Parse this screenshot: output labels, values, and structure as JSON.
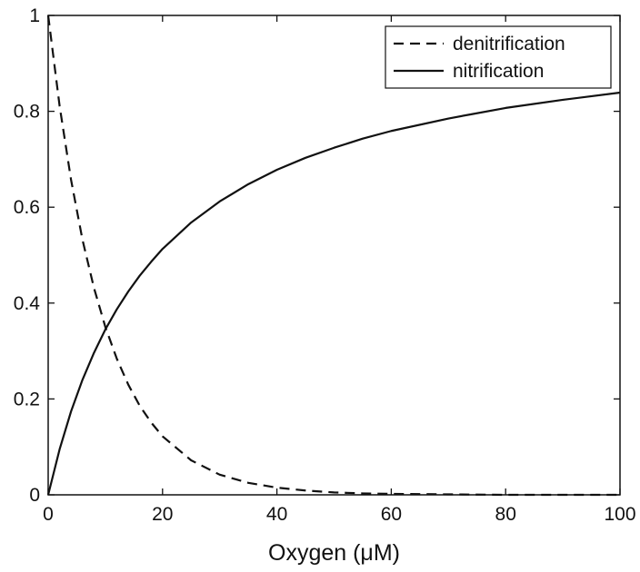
{
  "chart_data": {
    "type": "line",
    "title": "",
    "xlabel": "Oxygen (μM)",
    "ylabel": "",
    "xlim": [
      0,
      100
    ],
    "ylim": [
      0,
      1
    ],
    "xticks": [
      0,
      20,
      40,
      60,
      80,
      100
    ],
    "xtick_labels": [
      "0",
      "20",
      "40",
      "60",
      "80",
      "100"
    ],
    "yticks": [
      0,
      0.2,
      0.4,
      0.6,
      0.8,
      1
    ],
    "ytick_labels": [
      "0",
      "0.2",
      "0.4",
      "0.6",
      "0.8",
      "1"
    ],
    "grid": false,
    "legend_position": "top-right",
    "x": [
      0,
      2,
      4,
      6,
      8,
      10,
      12,
      14,
      16,
      18,
      20,
      25,
      30,
      35,
      40,
      45,
      50,
      55,
      60,
      70,
      80,
      90,
      100
    ],
    "series": [
      {
        "name": "denitrification",
        "line_style": "dashed",
        "color": "#111111",
        "values": [
          1.0,
          0.811,
          0.657,
          0.532,
          0.432,
          0.35,
          0.284,
          0.23,
          0.186,
          0.151,
          0.122,
          0.072,
          0.042,
          0.025,
          0.015,
          0.009,
          0.005,
          0.003,
          0.002,
          0.001,
          0.0,
          0.0,
          0.0
        ]
      },
      {
        "name": "nitrification",
        "line_style": "solid",
        "color": "#111111",
        "values": [
          0.0,
          0.095,
          0.174,
          0.24,
          0.296,
          0.345,
          0.387,
          0.424,
          0.457,
          0.486,
          0.513,
          0.568,
          0.612,
          0.648,
          0.678,
          0.703,
          0.724,
          0.743,
          0.759,
          0.785,
          0.807,
          0.824,
          0.839
        ]
      }
    ]
  }
}
